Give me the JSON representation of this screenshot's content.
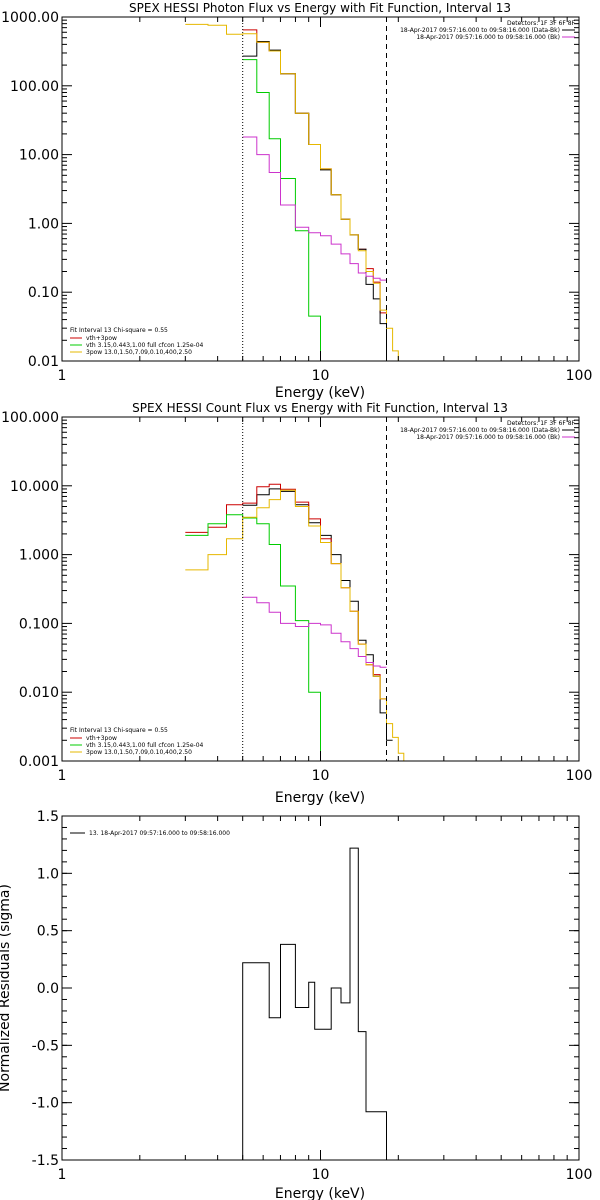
{
  "chart_data": [
    {
      "type": "line",
      "title": "SPEX HESSI Photon Flux vs Energy with Fit Function, Interval 13",
      "xlabel": "Energy (keV)",
      "ylabel": "",
      "xscale": "log",
      "yscale": "log",
      "xlim": [
        1,
        100
      ],
      "ylim": [
        0.01,
        1000
      ],
      "xticks": [
        {
          "v": 1,
          "label": "1"
        },
        {
          "v": 10,
          "label": "10"
        },
        {
          "v": 100,
          "label": "100"
        }
      ],
      "yticks": [
        {
          "v": 0.01,
          "label": "0.01"
        },
        {
          "v": 0.1,
          "label": "0.10"
        },
        {
          "v": 1,
          "label": "1.00"
        },
        {
          "v": 10,
          "label": "10.00"
        },
        {
          "v": 100,
          "label": "100.00"
        },
        {
          "v": 1000,
          "label": "1000.00"
        }
      ],
      "vlines": [
        {
          "x": 5.0,
          "style": "dotted",
          "color": "#000000"
        },
        {
          "x": 18.0,
          "style": "dashed",
          "color": "#000000"
        }
      ],
      "legend_tr": {
        "header": "Detectors: 1F 3F 6F 8F",
        "entries": [
          {
            "text": "18-Apr-2017 09:57:16.000 to 09:58:16.000 (Data-Bk)",
            "color": "#000000"
          },
          {
            "text": "18-Apr-2017 09:57:16.000 to 09:58:16.000 (Bk)",
            "color": "#cc33cc"
          }
        ]
      },
      "legend_bl": {
        "header": "Fit Interval 13   Chi-square = 0.55",
        "entries": [
          {
            "text": "vth+3pow",
            "color": "#cc0000"
          },
          {
            "text": "vth 3.15,0.443,1.00  full cfcon 1.25e-04",
            "color": "#00cc00"
          },
          {
            "text": "3pow 13.0,1.50,7.09,0.10,400,2.50",
            "color": "#e6b800"
          }
        ]
      },
      "series": [
        {
          "color": "#cc0000",
          "edges": [
            5.0,
            5.67,
            6.33,
            7.0,
            8.0,
            9.0,
            10.0,
            11.0,
            12.0,
            13.0,
            14.0,
            15.0,
            16.0,
            17.0,
            18.0
          ],
          "values": [
            650,
            430,
            320,
            150,
            40,
            14,
            6.2,
            2.6,
            1.15,
            0.68,
            0.42,
            0.22,
            0.14,
            0.05
          ]
        },
        {
          "color": "#000000",
          "edges": [
            5.0,
            5.67,
            6.33,
            7.0,
            8.0,
            9.0,
            10.0,
            11.0,
            12.0,
            13.0,
            14.0,
            15.0,
            16.0,
            17.0,
            18.0,
            19.0
          ],
          "values": [
            270,
            440,
            330,
            150,
            40,
            14,
            6.0,
            2.6,
            1.15,
            0.68,
            0.42,
            0.13,
            0.08,
            0.035,
            0.008
          ]
        },
        {
          "color": "#00cc00",
          "edges": [
            5.0,
            5.67,
            6.33,
            7.0,
            8.0,
            9.0,
            10.0,
            11.0
          ],
          "values": [
            240,
            80,
            17,
            4.5,
            0.78,
            0.045,
            0.009
          ]
        },
        {
          "color": "#e6b800",
          "edges": [
            3.0,
            3.67,
            4.33,
            5.0,
            5.67,
            6.33,
            7.0,
            8.0,
            9.0,
            10.0,
            11.0,
            12.0,
            13.0,
            14.0,
            15.0,
            16.0,
            17.0,
            18.0,
            19.0,
            20.0,
            21.0
          ],
          "values": [
            780,
            760,
            560,
            570,
            430,
            320,
            150,
            40,
            14,
            6.2,
            2.6,
            1.15,
            0.68,
            0.4,
            0.2,
            0.135,
            0.055,
            0.03,
            0.014,
            0.007
          ]
        },
        {
          "color": "#cc33cc",
          "edges": [
            5.0,
            5.67,
            6.33,
            7.0,
            8.0,
            9.0,
            10.0,
            11.0,
            12.0,
            13.0,
            14.0,
            15.0,
            16.0,
            17.0,
            18.0
          ],
          "values": [
            18,
            10,
            5.5,
            1.85,
            0.88,
            0.73,
            0.66,
            0.5,
            0.36,
            0.26,
            0.19,
            0.17,
            0.16,
            0.15
          ]
        }
      ]
    },
    {
      "type": "line",
      "title": "SPEX HESSI Count Flux vs Energy with Fit Function, Interval 13",
      "xlabel": "Energy (keV)",
      "ylabel": "",
      "xscale": "log",
      "yscale": "log",
      "xlim": [
        1,
        100
      ],
      "ylim": [
        0.001,
        100
      ],
      "xticks": [
        {
          "v": 1,
          "label": "1"
        },
        {
          "v": 10,
          "label": "10"
        },
        {
          "v": 100,
          "label": "100"
        }
      ],
      "yticks": [
        {
          "v": 0.001,
          "label": "0.001"
        },
        {
          "v": 0.01,
          "label": "0.010"
        },
        {
          "v": 0.1,
          "label": "0.100"
        },
        {
          "v": 1,
          "label": "1.000"
        },
        {
          "v": 10,
          "label": "10.000"
        },
        {
          "v": 100,
          "label": "100.000"
        }
      ],
      "vlines": [
        {
          "x": 5.0,
          "style": "dotted",
          "color": "#000000"
        },
        {
          "x": 18.0,
          "style": "dashed",
          "color": "#000000"
        }
      ],
      "legend_tr": {
        "header": "Detectors: 1F 3F 6F 8F",
        "entries": [
          {
            "text": "18-Apr-2017 09:57:16.000 to 09:58:16.000 (Data-Bk)",
            "color": "#000000"
          },
          {
            "text": "18-Apr-2017 09:57:16.000 to 09:58:16.000 (Bk)",
            "color": "#cc33cc"
          }
        ]
      },
      "legend_bl": {
        "header": "Fit Interval 13   Chi-square = 0.55",
        "entries": [
          {
            "text": "vth+3pow",
            "color": "#cc0000"
          },
          {
            "text": "vth 3.15,0.443,1.00  full cfcon 1.25e-04",
            "color": "#00cc00"
          },
          {
            "text": "3pow 13.0,1.50,7.09,0.10,400,2.50",
            "color": "#e6b800"
          }
        ]
      },
      "series": [
        {
          "color": "#000000",
          "edges": [
            5.0,
            5.67,
            6.33,
            7.0,
            8.0,
            9.0,
            10.0,
            11.0,
            12.0,
            13.0,
            14.0,
            15.0,
            16.0,
            17.0,
            18.0,
            19.0
          ],
          "values": [
            5.2,
            7.4,
            9.0,
            8.3,
            5.3,
            2.9,
            1.9,
            1.0,
            0.42,
            0.21,
            0.057,
            0.035,
            0.017,
            0.005,
            0.002
          ]
        },
        {
          "color": "#cc0000",
          "edges": [
            3.0,
            3.67,
            4.33,
            5.0,
            5.67,
            6.33,
            7.0,
            8.0,
            9.0,
            10.0,
            11.0,
            12.0,
            13.0,
            14.0,
            15.0,
            16.0,
            17.0,
            18.0
          ],
          "values": [
            2.1,
            2.5,
            5.3,
            5.6,
            9.7,
            10.5,
            8.9,
            5.8,
            3.3,
            1.7,
            0.74,
            0.33,
            0.15,
            0.05,
            0.025,
            0.018,
            0.008
          ]
        },
        {
          "color": "#00cc00",
          "edges": [
            3.0,
            3.67,
            4.33,
            5.0,
            5.67,
            6.33,
            7.0,
            8.0,
            9.0,
            10.0,
            11.0
          ],
          "values": [
            1.9,
            2.8,
            3.8,
            3.4,
            2.8,
            1.4,
            0.35,
            0.11,
            0.01,
            0.001
          ]
        },
        {
          "color": "#e6b800",
          "edges": [
            3.0,
            3.67,
            4.33,
            5.0,
            5.67,
            6.33,
            7.0,
            8.0,
            9.0,
            10.0,
            11.0,
            12.0,
            13.0,
            14.0,
            15.0,
            16.0,
            17.0,
            18.0,
            19.0,
            20.0,
            21.0,
            22.0
          ],
          "values": [
            0.6,
            1.0,
            1.7,
            3.5,
            4.8,
            6.3,
            8.6,
            5.0,
            2.6,
            1.5,
            0.74,
            0.33,
            0.15,
            0.05,
            0.025,
            0.017,
            0.008,
            0.0035,
            0.0022,
            0.0013,
            0.0007
          ]
        },
        {
          "color": "#cc33cc",
          "edges": [
            5.0,
            5.67,
            6.33,
            7.0,
            8.0,
            9.0,
            10.0,
            11.0,
            12.0,
            13.0,
            14.0,
            15.0,
            16.0,
            17.0,
            18.0
          ],
          "values": [
            0.24,
            0.2,
            0.145,
            0.1,
            0.09,
            0.1,
            0.095,
            0.072,
            0.054,
            0.043,
            0.033,
            0.027,
            0.024,
            0.023
          ]
        }
      ]
    },
    {
      "type": "line",
      "title": "",
      "xlabel": "Energy (keV)",
      "ylabel": "Normalized Residuals (sigma)",
      "xscale": "log",
      "yscale": "linear",
      "xlim": [
        1,
        100
      ],
      "ylim": [
        -1.5,
        1.5
      ],
      "xticks": [
        {
          "v": 1,
          "label": "1"
        },
        {
          "v": 10,
          "label": "10"
        },
        {
          "v": 100,
          "label": "100"
        }
      ],
      "yticks": [
        {
          "v": -1.5,
          "label": "-1.5"
        },
        {
          "v": -1.0,
          "label": "-1.0"
        },
        {
          "v": -0.5,
          "label": "-0.5"
        },
        {
          "v": 0.0,
          "label": "0.0"
        },
        {
          "v": 0.5,
          "label": "0.5"
        },
        {
          "v": 1.0,
          "label": "1.0"
        },
        {
          "v": 1.5,
          "label": "1.5"
        }
      ],
      "vlines": [],
      "legend_tl": {
        "entries": [
          {
            "text": "13. 18-Apr-2017 09:57:16.000 to 09:58:16.000",
            "color": "#000000"
          }
        ]
      },
      "series": [
        {
          "color": "#000000",
          "edges": [
            5.0,
            5.67,
            6.33,
            7.0,
            7.5,
            8.0,
            8.5,
            9.0,
            9.5,
            10.0,
            11.0,
            12.0,
            13.0,
            14.0,
            15.0,
            16.0,
            17.0,
            18.0
          ],
          "values": [
            0.22,
            0.22,
            -0.26,
            0.38,
            0.38,
            -0.17,
            -0.17,
            0.05,
            -0.36,
            -0.36,
            0.0,
            -0.13,
            1.22,
            -0.38,
            -1.08,
            -1.08,
            -1.08
          ],
          "start_from_bottom": true,
          "end_to_bottom": true
        }
      ]
    }
  ]
}
